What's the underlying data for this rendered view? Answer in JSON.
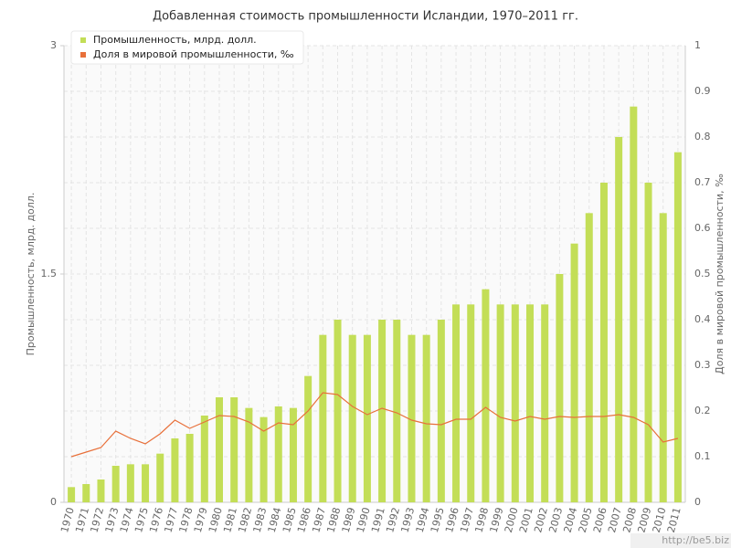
{
  "chart_data": {
    "type": "bar_line",
    "title": "Добавленная стоимость промышленности Исландии, 1970–2011 гг.",
    "y_label": "Промышленность, млрд. долл.",
    "y2_label": "Доля в мировой промышленности, ‰",
    "watermark": "http://be5.biz",
    "categories": [
      "1970",
      "1971",
      "1972",
      "1973",
      "1974",
      "1975",
      "1976",
      "1977",
      "1978",
      "1979",
      "1980",
      "1981",
      "1982",
      "1983",
      "1984",
      "1985",
      "1986",
      "1987",
      "1988",
      "1989",
      "1990",
      "1991",
      "1992",
      "1993",
      "1994",
      "1995",
      "1996",
      "1997",
      "1998",
      "1999",
      "2000",
      "2001",
      "2002",
      "2003",
      "2004",
      "2005",
      "2006",
      "2007",
      "2008",
      "2009",
      "2010",
      "2011"
    ],
    "series": [
      {
        "name": "Промышленность, млрд. долл.",
        "type": "bar",
        "color": "#c3de57",
        "values": [
          0.1,
          0.12,
          0.15,
          0.24,
          0.25,
          0.25,
          0.32,
          0.42,
          0.45,
          0.57,
          0.69,
          0.69,
          0.62,
          0.56,
          0.63,
          0.62,
          0.83,
          1.1,
          1.2,
          1.1,
          1.1,
          1.2,
          1.2,
          1.1,
          1.1,
          1.2,
          1.3,
          1.3,
          1.4,
          1.3,
          1.3,
          1.3,
          1.3,
          1.5,
          1.7,
          1.9,
          2.1,
          2.4,
          2.6,
          2.1,
          1.9,
          2.3
        ]
      },
      {
        "name": "Доля в мировой промышленности, ‰",
        "type": "line",
        "axis": "y2",
        "color": "#e8703a",
        "values": [
          0.1,
          0.11,
          0.12,
          0.156,
          0.14,
          0.128,
          0.15,
          0.18,
          0.162,
          0.176,
          0.19,
          0.188,
          0.176,
          0.156,
          0.174,
          0.17,
          0.2,
          0.24,
          0.236,
          0.21,
          0.192,
          0.206,
          0.196,
          0.18,
          0.172,
          0.17,
          0.182,
          0.182,
          0.208,
          0.186,
          0.178,
          0.188,
          0.182,
          0.188,
          0.186,
          0.188,
          0.188,
          0.192,
          0.186,
          0.17,
          0.132,
          0.14
        ]
      }
    ],
    "ylim": [
      0,
      3
    ],
    "yticks": [
      0,
      1.5,
      3
    ],
    "y2lim": [
      0,
      1
    ],
    "y2ticks": [
      0,
      0.1,
      0.2,
      0.3,
      0.4,
      0.5,
      0.6,
      0.7,
      0.8,
      0.9,
      1
    ],
    "grid": true
  }
}
